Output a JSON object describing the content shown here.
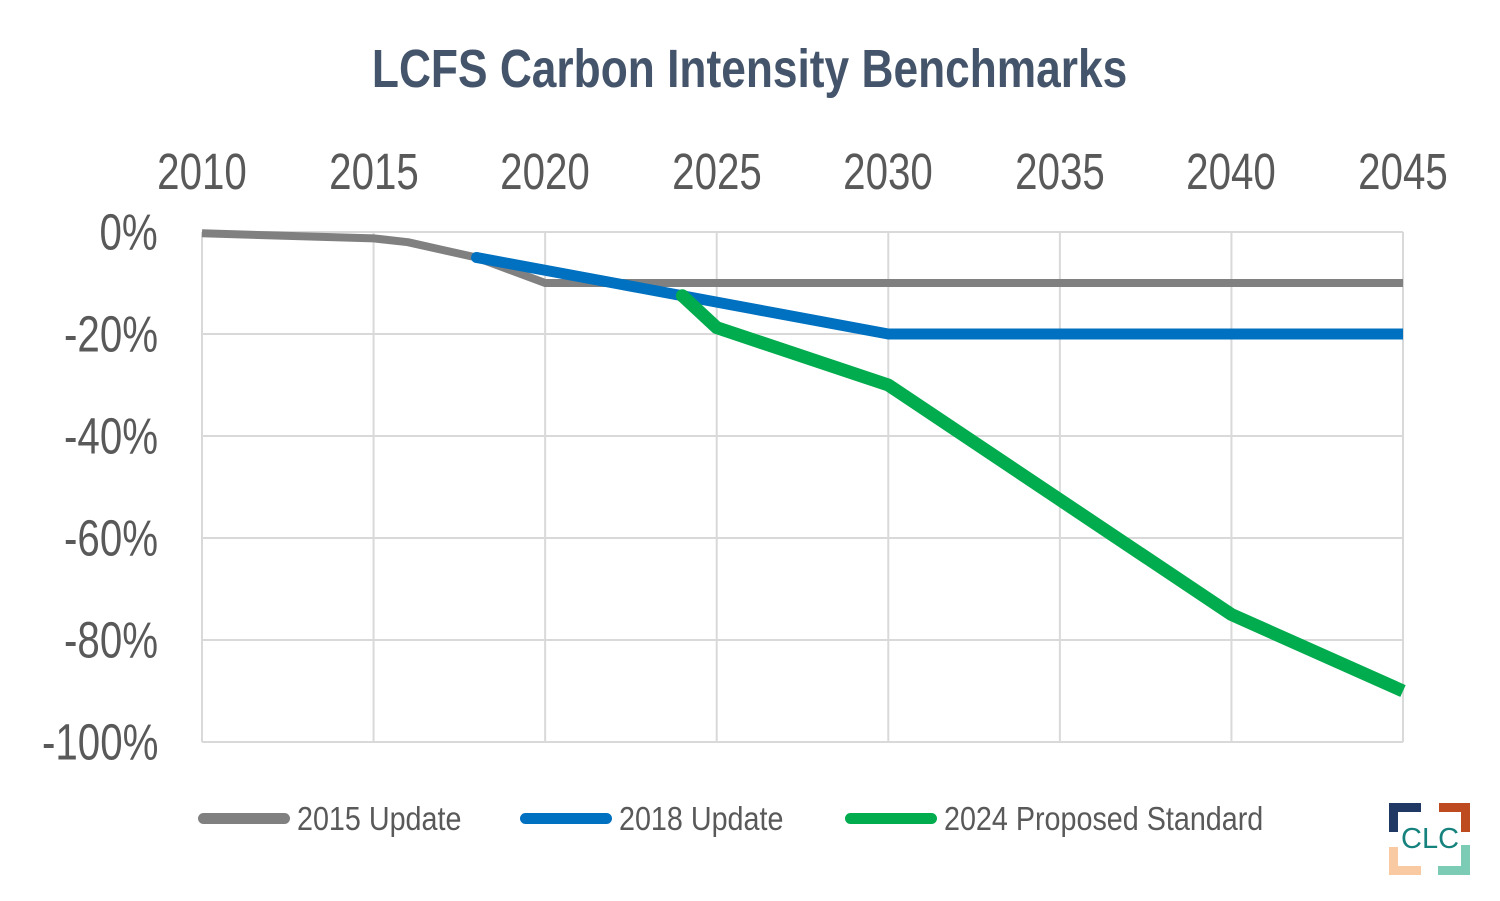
{
  "colors": {
    "title": "#44546A",
    "axis_labels": "#595959",
    "gridlines": "#D9D9D9",
    "background": "#FFFFFF"
  },
  "chart_data": {
    "type": "line",
    "title": "LCFS Carbon Intensity Benchmarks",
    "xlabel": "",
    "ylabel": "",
    "xlim": [
      2010,
      2045
    ],
    "ylim": [
      -100,
      0
    ],
    "x_axis_position": "top",
    "x_ticks": [
      2010,
      2015,
      2020,
      2025,
      2030,
      2035,
      2040,
      2045
    ],
    "y_ticks": [
      0,
      -20,
      -40,
      -60,
      -80,
      -100
    ],
    "y_tick_labels": [
      "0%",
      "-20%",
      "-40%",
      "-60%",
      "-80%",
      "-100%"
    ],
    "grid": true,
    "legend_position": "bottom",
    "series": [
      {
        "name": "2015 Update",
        "color": "#808080",
        "points": [
          [
            2010,
            -0.25
          ],
          [
            2015,
            -1.25
          ],
          [
            2016,
            -2
          ],
          [
            2017,
            -3.5
          ],
          [
            2018,
            -5
          ],
          [
            2019,
            -7.5
          ],
          [
            2020,
            -10
          ],
          [
            2045,
            -10
          ]
        ]
      },
      {
        "name": "2018 Update",
        "color": "#0070C0",
        "points": [
          [
            2018,
            -5
          ],
          [
            2019,
            -6.25
          ],
          [
            2020,
            -7.5
          ],
          [
            2021,
            -8.75
          ],
          [
            2022,
            -10
          ],
          [
            2023,
            -11.25
          ],
          [
            2024,
            -12.5
          ],
          [
            2025,
            -13.75
          ],
          [
            2026,
            -15
          ],
          [
            2027,
            -16.25
          ],
          [
            2028,
            -17.5
          ],
          [
            2029,
            -18.75
          ],
          [
            2030,
            -20
          ],
          [
            2045,
            -20
          ]
        ]
      },
      {
        "name": "2024 Proposed Standard",
        "color": "#00AC4D",
        "points": [
          [
            2024,
            -12.5
          ],
          [
            2025,
            -18.75
          ],
          [
            2030,
            -30
          ],
          [
            2035,
            -52.5
          ],
          [
            2040,
            -75
          ],
          [
            2045,
            -90
          ]
        ]
      }
    ]
  },
  "logo": {
    "text": "CLC",
    "text_color": "#15827D",
    "bracket_colors": {
      "top_left": "#1F3864",
      "top_right": "#BE4A1F",
      "bottom_left": "#F9C9A2",
      "bottom_right": "#7CCBB4"
    }
  }
}
